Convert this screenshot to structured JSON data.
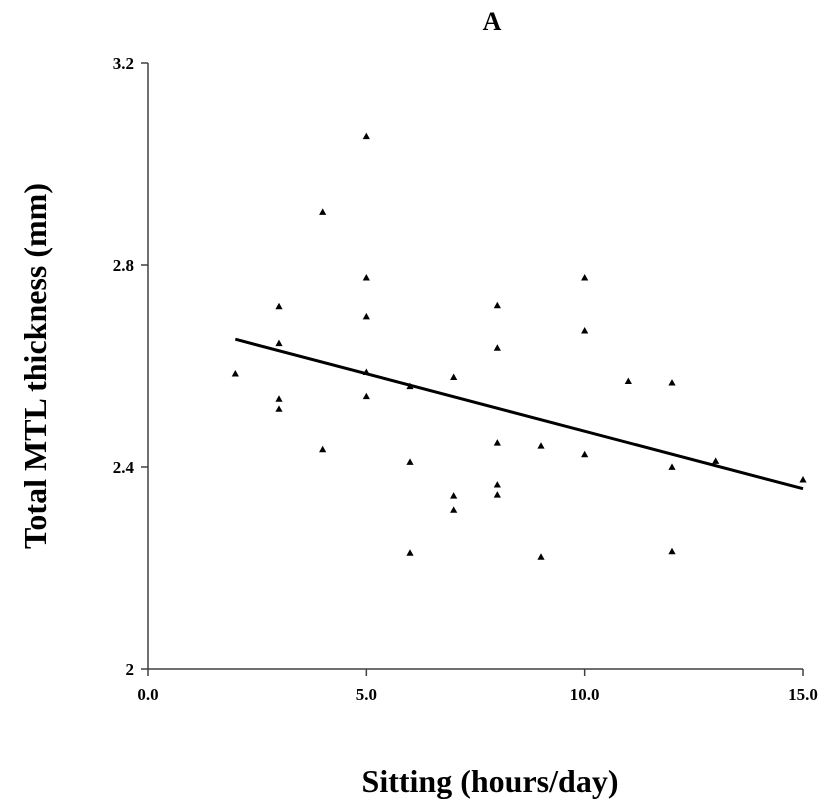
{
  "chart_data": {
    "type": "scatter",
    "title": "A",
    "xlabel": "Sitting (hours/day)",
    "ylabel": "Total MTL thickness (mm)",
    "xlim": [
      0,
      15
    ],
    "ylim": [
      2.0,
      3.2
    ],
    "x_ticks": [
      0,
      5,
      10,
      15
    ],
    "x_tick_labels": [
      "0.0",
      "5.0",
      "10.0",
      "15.0"
    ],
    "y_ticks": [
      2.0,
      2.4,
      2.8,
      3.2
    ],
    "y_tick_labels": [
      "2",
      "2.4",
      "2.8",
      "3.2"
    ],
    "grid": false,
    "legend": "none",
    "marker": "triangle",
    "color": "#000000",
    "points": [
      {
        "x": 2,
        "y": 2.585
      },
      {
        "x": 3,
        "y": 2.718
      },
      {
        "x": 3,
        "y": 2.645
      },
      {
        "x": 3,
        "y": 2.535
      },
      {
        "x": 3,
        "y": 2.515
      },
      {
        "x": 4,
        "y": 2.905
      },
      {
        "x": 4,
        "y": 2.435
      },
      {
        "x": 5,
        "y": 3.055
      },
      {
        "x": 5,
        "y": 2.775
      },
      {
        "x": 5,
        "y": 2.698
      },
      {
        "x": 5,
        "y": 2.588
      },
      {
        "x": 5,
        "y": 2.54
      },
      {
        "x": 6,
        "y": 2.56
      },
      {
        "x": 6,
        "y": 2.41
      },
      {
        "x": 6,
        "y": 2.23
      },
      {
        "x": 7,
        "y": 2.578
      },
      {
        "x": 7,
        "y": 2.343
      },
      {
        "x": 7,
        "y": 2.315
      },
      {
        "x": 8,
        "y": 2.72
      },
      {
        "x": 8,
        "y": 2.636
      },
      {
        "x": 8,
        "y": 2.448
      },
      {
        "x": 8,
        "y": 2.365
      },
      {
        "x": 8,
        "y": 2.345
      },
      {
        "x": 9,
        "y": 2.442
      },
      {
        "x": 9,
        "y": 2.222
      },
      {
        "x": 10,
        "y": 2.775
      },
      {
        "x": 10,
        "y": 2.67
      },
      {
        "x": 10,
        "y": 2.425
      },
      {
        "x": 11,
        "y": 2.57
      },
      {
        "x": 12,
        "y": 2.567
      },
      {
        "x": 12,
        "y": 2.4
      },
      {
        "x": 12,
        "y": 2.233
      },
      {
        "x": 13,
        "y": 2.412
      },
      {
        "x": 15,
        "y": 2.375
      }
    ],
    "trendline": {
      "x": [
        2,
        15
      ],
      "y": [
        2.653,
        2.357
      ]
    }
  }
}
